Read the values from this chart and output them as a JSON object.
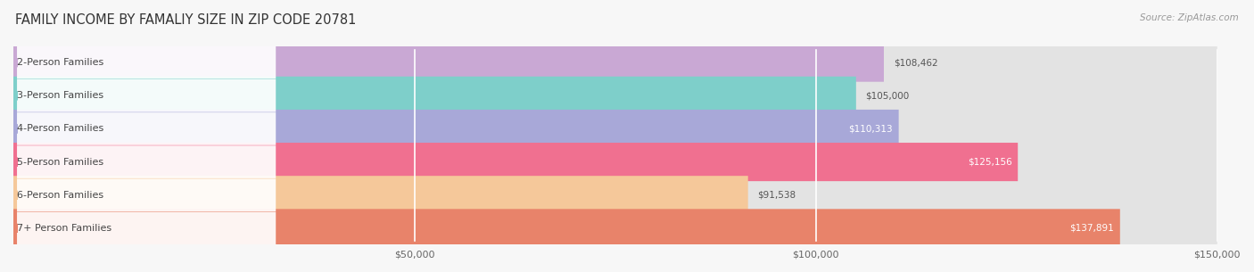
{
  "title": "FAMILY INCOME BY FAMALIY SIZE IN ZIP CODE 20781",
  "source": "Source: ZipAtlas.com",
  "categories": [
    "2-Person Families",
    "3-Person Families",
    "4-Person Families",
    "5-Person Families",
    "6-Person Families",
    "7+ Person Families"
  ],
  "values": [
    108462,
    105000,
    110313,
    125156,
    91538,
    137891
  ],
  "labels": [
    "$108,462",
    "$105,000",
    "$110,313",
    "$125,156",
    "$91,538",
    "$137,891"
  ],
  "bar_colors": [
    "#c9a8d4",
    "#7ecfca",
    "#a8a8d8",
    "#f07090",
    "#f5c89a",
    "#e8836a"
  ],
  "label_inside_white": [
    false,
    false,
    true,
    true,
    false,
    true
  ],
  "bg_color": "#f7f7f7",
  "bar_bg_color": "#e3e3e3",
  "xlim_max": 150000,
  "xtick_vals": [
    50000,
    100000,
    150000
  ],
  "xtick_labels": [
    "$50,000",
    "$100,000",
    "$150,000"
  ],
  "title_fontsize": 10.5,
  "label_fontsize": 8,
  "value_fontsize": 7.5,
  "source_fontsize": 7.5
}
